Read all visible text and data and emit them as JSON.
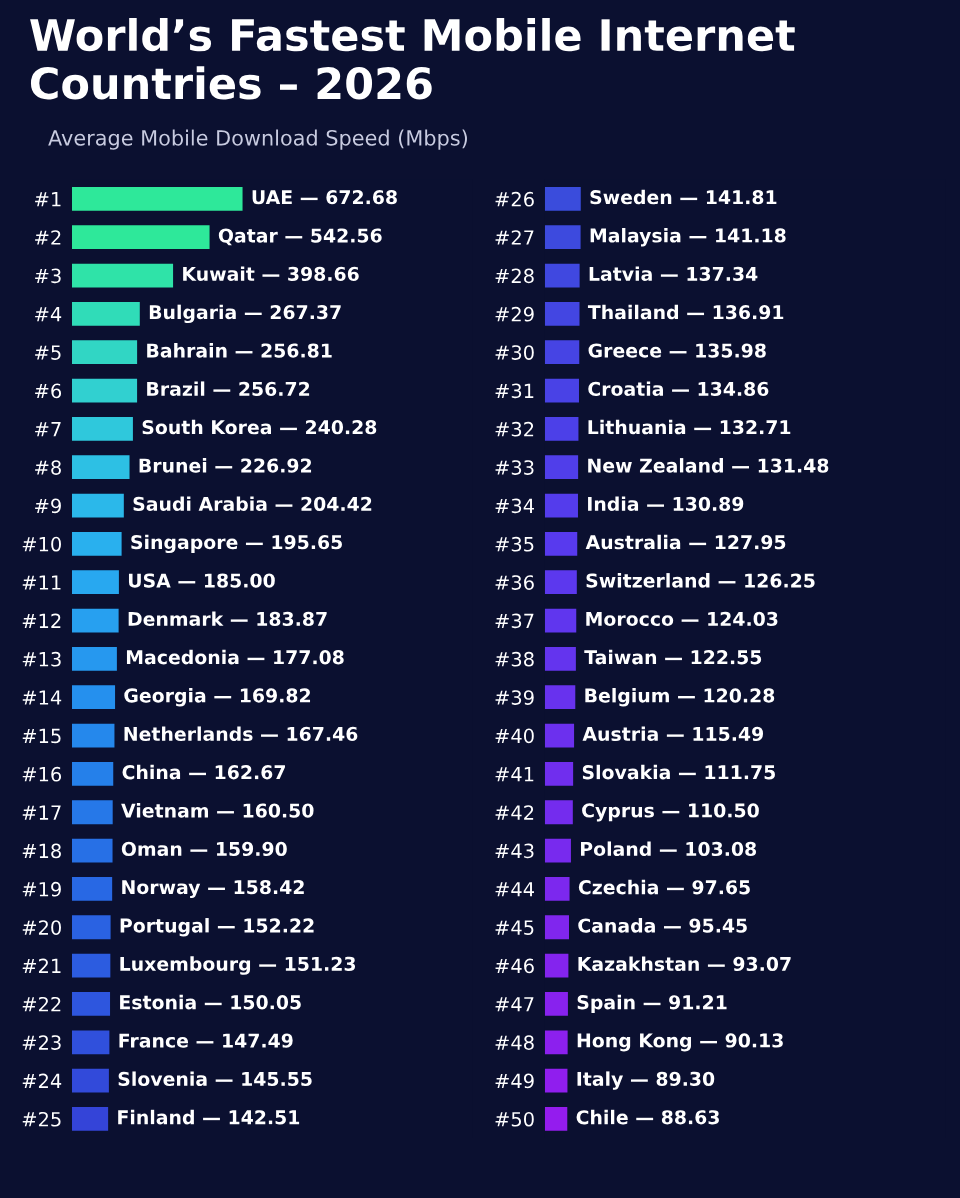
{
  "chart_data": [
    {
      "type": "bar",
      "orientation": "horizontal",
      "title": "World’s Fastest Mobile Internet Countries – 2026",
      "subtitle": "Average Mobile Download Speed (Mbps)",
      "tick_labels": "y",
      "categories": [
        "#1",
        "#2",
        "#3",
        "#4",
        "#5",
        "#6",
        "#7",
        "#8",
        "#9",
        "#10",
        "#11",
        "#12",
        "#13",
        "#14",
        "#15",
        "#16",
        "#17",
        "#18",
        "#19",
        "#20",
        "#21",
        "#22",
        "#23",
        "#24",
        "#25"
      ],
      "values": [
        672.68,
        542.56,
        398.66,
        267.37,
        256.81,
        256.72,
        240.28,
        226.92,
        204.42,
        195.65,
        185.0,
        183.87,
        177.08,
        169.82,
        167.46,
        162.67,
        160.5,
        159.9,
        158.42,
        152.22,
        151.23,
        150.05,
        147.49,
        145.55,
        142.51
      ],
      "value_labels": [
        "UAE — 672.68",
        "Qatar — 542.56",
        "Kuwait — 398.66",
        "Bulgaria — 267.37",
        "Bahrain — 256.81",
        "Brazil — 256.72",
        "South Korea — 240.28",
        "Brunei — 226.92",
        "Saudi Arabia — 204.42",
        "Singapore — 195.65",
        "USA — 185.00",
        "Denmark — 183.87",
        "Macedonia — 177.08",
        "Georgia — 169.82",
        "Netherlands — 167.46",
        "China — 162.67",
        "Vietnam — 160.50",
        "Oman — 159.90",
        "Norway — 158.42",
        "Portugal — 152.22",
        "Luxembourg — 151.23",
        "Estonia — 150.05",
        "France — 147.49",
        "Slovenia — 145.55",
        "Finland — 142.51"
      ],
      "colors": [
        "#2ee89a",
        "#2ee89a",
        "#2fe3a8",
        "#30dcb8",
        "#31d6c4",
        "#31d0d0",
        "#2fc8dc",
        "#2dc0e4",
        "#2bb8ea",
        "#29b0ee",
        "#28a8f0",
        "#27a0f0",
        "#2698ef",
        "#2590ee",
        "#2588ec",
        "#2580ea",
        "#2678e8",
        "#2770e6",
        "#2868e4",
        "#2a62e2",
        "#2c5ce0",
        "#2e56de",
        "#3050dc",
        "#324ada",
        "#3444d8"
      ]
    },
    {
      "type": "bar",
      "orientation": "horizontal",
      "tick_labels": "y",
      "categories": [
        "#26",
        "#27",
        "#28",
        "#29",
        "#30",
        "#31",
        "#32",
        "#33",
        "#34",
        "#35",
        "#36",
        "#37",
        "#38",
        "#39",
        "#40",
        "#41",
        "#42",
        "#43",
        "#44",
        "#45",
        "#46",
        "#47",
        "#48",
        "#49",
        "#50"
      ],
      "values": [
        141.81,
        141.18,
        137.34,
        136.91,
        135.98,
        134.86,
        132.71,
        131.48,
        130.89,
        127.95,
        126.25,
        124.03,
        122.55,
        120.28,
        115.49,
        111.75,
        110.5,
        103.08,
        97.65,
        95.45,
        93.07,
        91.21,
        90.13,
        89.3,
        88.63
      ],
      "value_labels": [
        "Sweden — 141.81",
        "Malaysia — 141.18",
        "Latvia — 137.34",
        "Thailand — 136.91",
        "Greece — 135.98",
        "Croatia — 134.86",
        "Lithuania — 132.71",
        "New Zealand — 131.48",
        "India — 130.89",
        "Australia — 127.95",
        "Switzerland — 126.25",
        "Morocco — 124.03",
        "Taiwan — 122.55",
        "Belgium — 120.28",
        "Austria — 115.49",
        "Slovakia — 111.75",
        "Cyprus — 110.50",
        "Poland — 103.08",
        "Czechia — 97.65",
        "Canada — 95.45",
        "Kazakhstan — 93.07",
        "Spain — 91.21",
        "Hong Kong — 90.13",
        "Italy — 89.30",
        "Chile — 88.63"
      ],
      "colors": [
        "#3a4cdc",
        "#3d4ade",
        "#4048e0",
        "#4346e2",
        "#4644e4",
        "#4942e6",
        "#4c40e8",
        "#503eea",
        "#543cec",
        "#583aee",
        "#5c38ee",
        "#6036ee",
        "#6434ee",
        "#6832ee",
        "#6c30ee",
        "#702eee",
        "#742cee",
        "#782aee",
        "#7c28ee",
        "#8026ee",
        "#8424ee",
        "#8822ee",
        "#8c20ee",
        "#901eee",
        "#941cee"
      ]
    }
  ]
}
